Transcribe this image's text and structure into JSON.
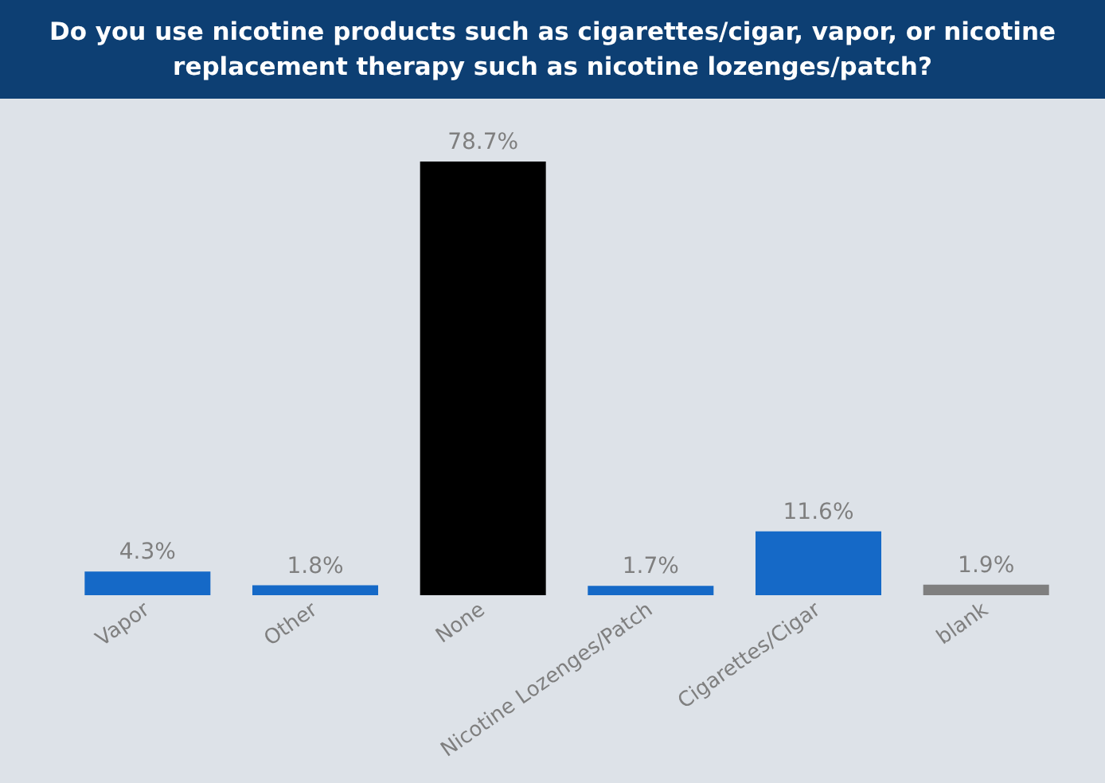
{
  "chart_data": {
    "type": "bar",
    "title": "Do you use nicotine products such as cigarettes/cigar, vapor, or nicotine replacement therapy such as nicotine lozenges/patch?",
    "categories": [
      "Vapor",
      "Other",
      "None",
      "Nicotine Lozenges/Patch",
      "Cigarettes/Cigar",
      "blank"
    ],
    "values": [
      4.3,
      1.8,
      78.7,
      1.7,
      11.6,
      1.9
    ],
    "colors": [
      "#1569c7",
      "#1569c7",
      "#000000",
      "#1569c7",
      "#1569c7",
      "#7f7f7f"
    ],
    "value_labels": [
      "4.3%",
      "1.8%",
      "78.7%",
      "1.7%",
      "11.6%",
      "1.9%"
    ]
  }
}
